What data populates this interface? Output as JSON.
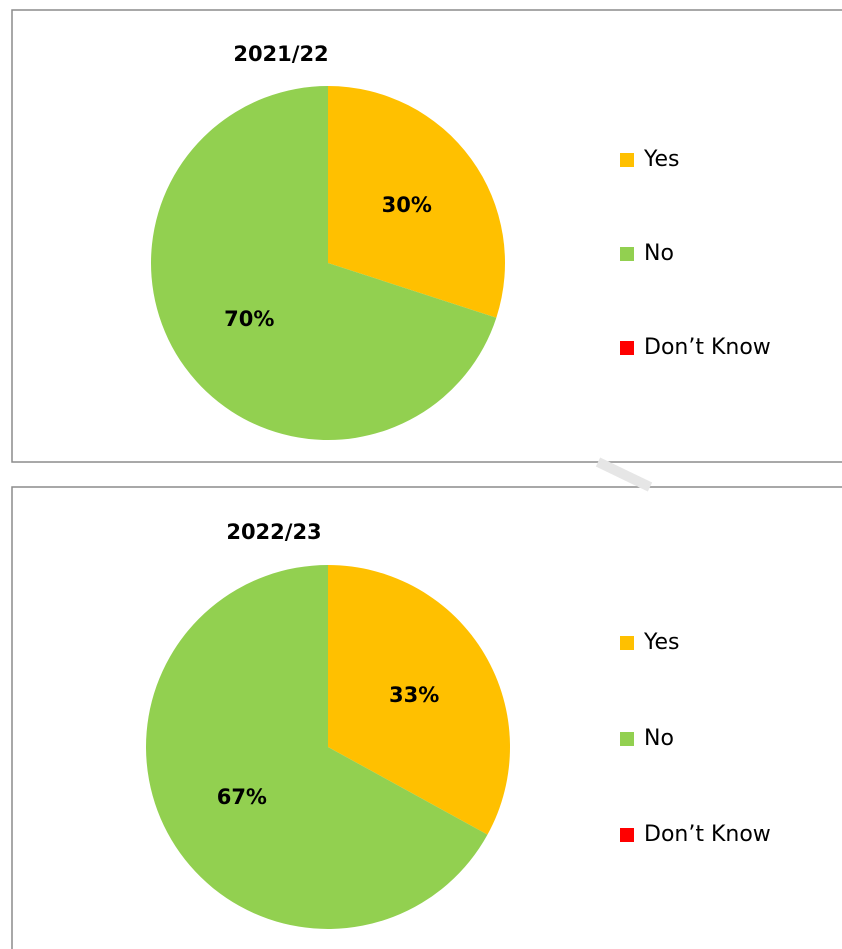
{
  "chart_data": [
    {
      "type": "pie",
      "title": "2021/22",
      "categories": [
        "Yes",
        "No",
        "Don’t Know"
      ],
      "values": [
        30,
        70,
        0
      ],
      "value_labels": [
        "30%",
        "70%",
        null
      ],
      "colors": [
        "#ffc000",
        "#92d050",
        "#ff0000"
      ],
      "legend": "right"
    },
    {
      "type": "pie",
      "title": "2022/23",
      "categories": [
        "Yes",
        "No",
        "Don’t Know"
      ],
      "values": [
        33,
        67,
        0
      ],
      "value_labels": [
        "33%",
        "67%",
        null
      ],
      "colors": [
        "#ffc000",
        "#92d050",
        "#ff0000"
      ],
      "legend": "right"
    }
  ]
}
